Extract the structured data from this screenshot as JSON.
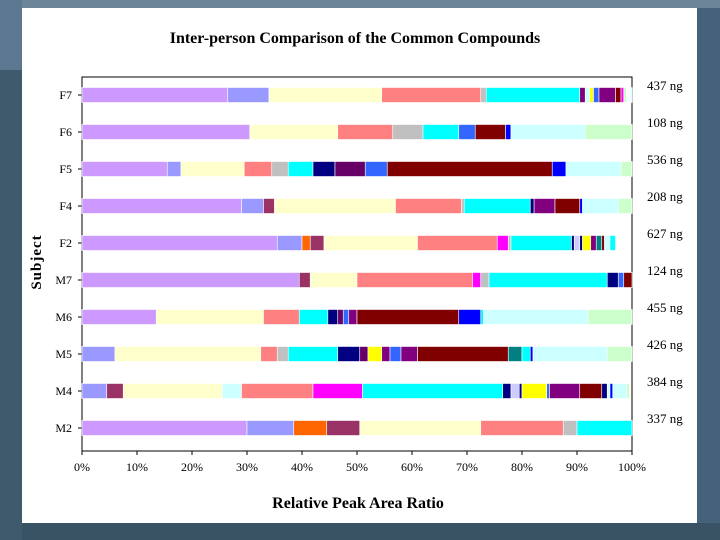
{
  "chart_data": {
    "type": "bar",
    "orientation": "horizontal",
    "stacked": true,
    "title": "Inter-person Comparison of the Common Compounds",
    "xlabel": "Relative Peak Area Ratio",
    "ylabel": "Subject",
    "xlim": [
      0,
      100
    ],
    "xticks": [
      "0%",
      "10%",
      "20%",
      "30%",
      "40%",
      "50%",
      "60%",
      "70%",
      "80%",
      "90%",
      "100%"
    ],
    "categories": [
      "F7",
      "F6",
      "F5",
      "F4",
      "F2",
      "M7",
      "M6",
      "M5",
      "M4",
      "M2"
    ],
    "amounts": [
      "437 ng",
      "108 ng",
      "536 ng",
      "208 ng",
      "627 ng",
      "124 ng",
      "455 ng",
      "426 ng",
      "384 ng",
      "337 ng"
    ],
    "series_colors": [
      "#cc99ff",
      "#9999ff",
      "#993366",
      "#ff6600",
      "#ffffcc",
      "#ff8080",
      "#c0c0c0",
      "#ccffff",
      "#00ffff",
      "#000080",
      "#660066",
      "#3366ff",
      "#800000",
      "#0000ff",
      "#ff00ff",
      "#008080",
      "#ffff00",
      "#800080",
      "#ccffcc"
    ],
    "rows": [
      {
        "name": "F7",
        "segments": [
          {
            "c": "#cc99ff",
            "v": 26.5
          },
          {
            "c": "#9999ff",
            "v": 7.5
          },
          {
            "c": "#ffffcc",
            "v": 20.5
          },
          {
            "c": "#ff8080",
            "v": 18
          },
          {
            "c": "#c0c0c0",
            "v": 1
          },
          {
            "c": "#00ffff",
            "v": 17
          },
          {
            "c": "#800080",
            "v": 1
          },
          {
            "c": "#ccffff",
            "v": 0.8
          },
          {
            "c": "#ffff00",
            "v": 0.7
          },
          {
            "c": "#3366ff",
            "v": 1
          },
          {
            "c": "#800080",
            "v": 3
          },
          {
            "c": "#800000",
            "v": 1
          },
          {
            "c": "#ff00ff",
            "v": 0.5
          },
          {
            "c": "#ccffcc",
            "v": 0.5
          },
          {
            "c": "#ffffff",
            "v": 0.7
          },
          {
            "c": "#ccffff",
            "v": 0.3
          }
        ]
      },
      {
        "name": "F6",
        "segments": [
          {
            "c": "#cc99ff",
            "v": 30.5
          },
          {
            "c": "#ffffcc",
            "v": 16
          },
          {
            "c": "#ff8080",
            "v": 10
          },
          {
            "c": "#c0c0c0",
            "v": 5.5
          },
          {
            "c": "#00ffff",
            "v": 6.5
          },
          {
            "c": "#3366ff",
            "v": 3
          },
          {
            "c": "#800000",
            "v": 5.5
          },
          {
            "c": "#0000ff",
            "v": 1
          },
          {
            "c": "#ccffff",
            "v": 13.5
          },
          {
            "c": "#ccffcc",
            "v": 8.5
          }
        ]
      },
      {
        "name": "F5",
        "segments": [
          {
            "c": "#cc99ff",
            "v": 15.5
          },
          {
            "c": "#9999ff",
            "v": 2.5
          },
          {
            "c": "#ffffcc",
            "v": 11.5
          },
          {
            "c": "#ff8080",
            "v": 5
          },
          {
            "c": "#c0c0c0",
            "v": 3
          },
          {
            "c": "#00ffff",
            "v": 4.5
          },
          {
            "c": "#000080",
            "v": 4
          },
          {
            "c": "#660066",
            "v": 5.5
          },
          {
            "c": "#3366ff",
            "v": 4
          },
          {
            "c": "#800000",
            "v": 30
          },
          {
            "c": "#0000ff",
            "v": 2.5
          },
          {
            "c": "#ccffff",
            "v": 10
          },
          {
            "c": "#ccffcc",
            "v": 2.5
          }
        ]
      },
      {
        "name": "F4",
        "segments": [
          {
            "c": "#cc99ff",
            "v": 29
          },
          {
            "c": "#9999ff",
            "v": 4
          },
          {
            "c": "#993366",
            "v": 2
          },
          {
            "c": "#ffffcc",
            "v": 22
          },
          {
            "c": "#ff8080",
            "v": 12
          },
          {
            "c": "#c0c0c0",
            "v": 0.5
          },
          {
            "c": "#00ffff",
            "v": 12
          },
          {
            "c": "#000080",
            "v": 0.7
          },
          {
            "c": "#800080",
            "v": 3.8
          },
          {
            "c": "#800000",
            "v": 4.5
          },
          {
            "c": "#0000ff",
            "v": 0.5
          },
          {
            "c": "#ccffff",
            "v": 6.5
          },
          {
            "c": "#ccffcc",
            "v": 2.5
          }
        ]
      },
      {
        "name": "F2",
        "segments": [
          {
            "c": "#cc99ff",
            "v": 35.5
          },
          {
            "c": "#9999ff",
            "v": 4.5
          },
          {
            "c": "#ff6600",
            "v": 1.5
          },
          {
            "c": "#993366",
            "v": 2.5
          },
          {
            "c": "#ffffcc",
            "v": 17
          },
          {
            "c": "#ff8080",
            "v": 14.5
          },
          {
            "c": "#ff00ff",
            "v": 2
          },
          {
            "c": "#c0c0c0",
            "v": 0.5
          },
          {
            "c": "#00ffff",
            "v": 11
          },
          {
            "c": "#000080",
            "v": 0.5
          },
          {
            "c": "#ccccff",
            "v": 1
          },
          {
            "c": "#000080",
            "v": 0.5
          },
          {
            "c": "#ffff00",
            "v": 1.5
          },
          {
            "c": "#800080",
            "v": 1
          },
          {
            "c": "#008080",
            "v": 1
          },
          {
            "c": "#800000",
            "v": 0.5
          },
          {
            "c": "#ccffff",
            "v": 1
          },
          {
            "c": "#00ffff",
            "v": 1
          }
        ]
      },
      {
        "name": "M7",
        "segments": [
          {
            "c": "#cc99ff",
            "v": 39.5
          },
          {
            "c": "#993366",
            "v": 2
          },
          {
            "c": "#ffffcc",
            "v": 8.5
          },
          {
            "c": "#ff8080",
            "v": 21
          },
          {
            "c": "#ff00ff",
            "v": 1.5
          },
          {
            "c": "#c0c0c0",
            "v": 1.5
          },
          {
            "c": "#00ffff",
            "v": 21.5
          },
          {
            "c": "#000080",
            "v": 2
          },
          {
            "c": "#3366ff",
            "v": 1
          },
          {
            "c": "#800000",
            "v": 1.5
          }
        ]
      },
      {
        "name": "M6",
        "segments": [
          {
            "c": "#cc99ff",
            "v": 13.5
          },
          {
            "c": "#ffffcc",
            "v": 19.5
          },
          {
            "c": "#ff8080",
            "v": 6.5
          },
          {
            "c": "#00ffff",
            "v": 5.2
          },
          {
            "c": "#000080",
            "v": 1.8
          },
          {
            "c": "#660066",
            "v": 1
          },
          {
            "c": "#3366ff",
            "v": 1
          },
          {
            "c": "#800080",
            "v": 1.5
          },
          {
            "c": "#800000",
            "v": 18.5
          },
          {
            "c": "#0000ff",
            "v": 4
          },
          {
            "c": "#00ffff",
            "v": 0.5
          },
          {
            "c": "#ccffff",
            "v": 19
          },
          {
            "c": "#ccffcc",
            "v": 8.5
          }
        ]
      },
      {
        "name": "M5",
        "segments": [
          {
            "c": "#9999ff",
            "v": 6
          },
          {
            "c": "#ffffcc",
            "v": 26.5
          },
          {
            "c": "#ff8080",
            "v": 3
          },
          {
            "c": "#c0c0c0",
            "v": 2
          },
          {
            "c": "#00ffff",
            "v": 9
          },
          {
            "c": "#000080",
            "v": 4
          },
          {
            "c": "#660066",
            "v": 1.5
          },
          {
            "c": "#ffff00",
            "v": 2.5
          },
          {
            "c": "#800080",
            "v": 1.5
          },
          {
            "c": "#3366ff",
            "v": 2
          },
          {
            "c": "#800080",
            "v": 3
          },
          {
            "c": "#800000",
            "v": 16.5
          },
          {
            "c": "#008080",
            "v": 2.5
          },
          {
            "c": "#00ffff",
            "v": 1.5
          },
          {
            "c": "#0000ff",
            "v": 0.5
          },
          {
            "c": "#ccffff",
            "v": 13.5
          },
          {
            "c": "#ccffcc",
            "v": 4.5
          }
        ]
      },
      {
        "name": "M4",
        "segments": [
          {
            "c": "#9999ff",
            "v": 4.5
          },
          {
            "c": "#993366",
            "v": 3
          },
          {
            "c": "#ffffcc",
            "v": 18
          },
          {
            "c": "#ccffff",
            "v": 3.5
          },
          {
            "c": "#ff8080",
            "v": 13
          },
          {
            "c": "#ff00ff",
            "v": 9
          },
          {
            "c": "#00ffff",
            "v": 25.5
          },
          {
            "c": "#000080",
            "v": 1.5
          },
          {
            "c": "#ccccff",
            "v": 1.5
          },
          {
            "c": "#000080",
            "v": 0.5
          },
          {
            "c": "#ffff00",
            "v": 4.5
          },
          {
            "c": "#3366ff",
            "v": 0.5
          },
          {
            "c": "#800080",
            "v": 5.5
          },
          {
            "c": "#800000",
            "v": 4
          },
          {
            "c": "#000080",
            "v": 1
          },
          {
            "c": "#ccffff",
            "v": 0.5
          },
          {
            "c": "#0000ff",
            "v": 0.5
          },
          {
            "c": "#ccffff",
            "v": 2.5
          },
          {
            "c": "#ccffcc",
            "v": 0.5
          }
        ]
      },
      {
        "name": "M2",
        "segments": [
          {
            "c": "#cc99ff",
            "v": 30
          },
          {
            "c": "#9999ff",
            "v": 8.5
          },
          {
            "c": "#ff6600",
            "v": 6
          },
          {
            "c": "#993366",
            "v": 6
          },
          {
            "c": "#ffffcc",
            "v": 22
          },
          {
            "c": "#ff8080",
            "v": 15
          },
          {
            "c": "#c0c0c0",
            "v": 2.5
          },
          {
            "c": "#00ffff",
            "v": 10
          }
        ]
      }
    ]
  }
}
